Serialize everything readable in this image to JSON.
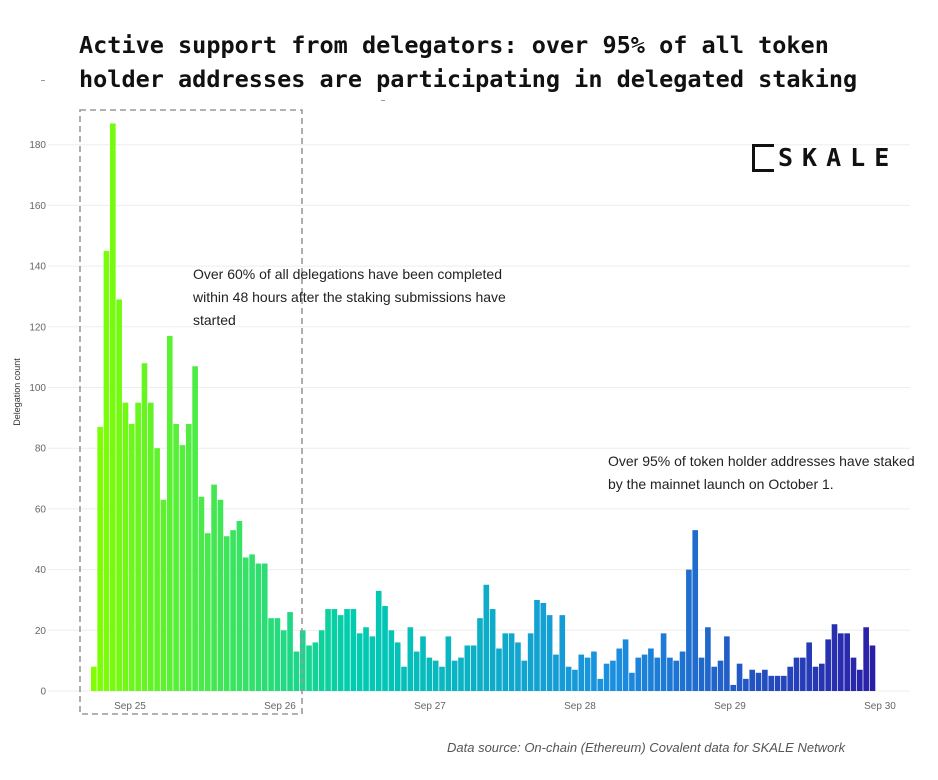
{
  "title_lines": [
    "Active support from delegators: over 95% of all token",
    "holder addresses are participating in delegated staking"
  ],
  "logo_text": "SKALE",
  "annotations": [
    "Over 60% of all delegations have been completed within 48 hours after the staking submissions have started",
    "Over 95% of token holder addresses have staked by the mainnet launch on October 1."
  ],
  "source": "Data source: On-chain (Ethereum) Covalent data for SKALE Network",
  "chart_data": {
    "type": "bar",
    "title": "Active support from delegators: over 95% of all token holder addresses are participating in delegated staking",
    "xlabel": "",
    "ylabel": "Delegation count",
    "ylim": [
      0,
      190
    ],
    "yticks": [
      0,
      20,
      40,
      60,
      80,
      100,
      120,
      140,
      160,
      180
    ],
    "xtick_labels": [
      "Sep 25",
      "Sep 26",
      "Sep 27",
      "Sep 28",
      "Sep 29",
      "Sep 30"
    ],
    "bar_interval": "hourly",
    "values": [
      8,
      87,
      145,
      187,
      129,
      95,
      88,
      95,
      108,
      95,
      80,
      63,
      117,
      88,
      81,
      88,
      107,
      64,
      52,
      68,
      63,
      51,
      53,
      56,
      44,
      45,
      42,
      42,
      24,
      24,
      20,
      26,
      13,
      20,
      15,
      16,
      20,
      27,
      27,
      25,
      27,
      27,
      19,
      21,
      18,
      33,
      28,
      20,
      16,
      8,
      21,
      13,
      18,
      11,
      10,
      8,
      18,
      10,
      11,
      15,
      15,
      24,
      35,
      27,
      14,
      19,
      19,
      16,
      10,
      19,
      30,
      29,
      25,
      12,
      25,
      8,
      7,
      12,
      11,
      13,
      4,
      9,
      10,
      14,
      17,
      6,
      11,
      12,
      14,
      11,
      19,
      11,
      10,
      13,
      40,
      53,
      11,
      21,
      8,
      10,
      18,
      2,
      9,
      4,
      7,
      6,
      7,
      5,
      5,
      5,
      8,
      11,
      11,
      16,
      8,
      9,
      17,
      22,
      19,
      19,
      11,
      7,
      21,
      15
    ],
    "grid": true,
    "highlight_box": "Sep 25 – Sep 26",
    "color_scale": [
      "#7fff00",
      "#00ccb0",
      "#1a90e0",
      "#2a1fa8"
    ]
  }
}
